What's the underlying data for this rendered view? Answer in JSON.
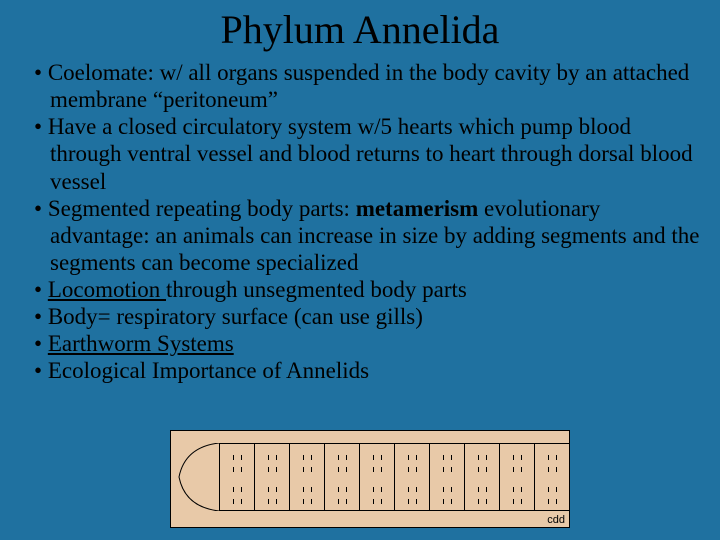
{
  "title": "Phylum Annelida",
  "bullets": {
    "b1": " Coelomate:  w/ all organs suspended in the body cavity by an attached membrane “peritoneum”",
    "b2": " Have a closed circulatory system w/5 hearts which pump blood through ventral vessel and blood returns to heart through dorsal blood vessel",
    "b3_a": "Segmented repeating body parts:  ",
    "b3_bold": "metamerism",
    "b3_b": " evolutionary advantage:  an animals can increase in size by adding segments and the segments can  become specialized",
    "b4_link": "Locomotion ",
    "b4_rest": "through unsegmented body parts",
    "b5": "Body= respiratory surface (can use gills)",
    "b6": "Earthworm Systems",
    "b7": "Ecological Importance of Annelids"
  },
  "diagram": {
    "background_color": "#e8c9a8",
    "segment_count": 10,
    "segment_width": 35,
    "nose_width": 42,
    "corner_label": "cdd"
  }
}
